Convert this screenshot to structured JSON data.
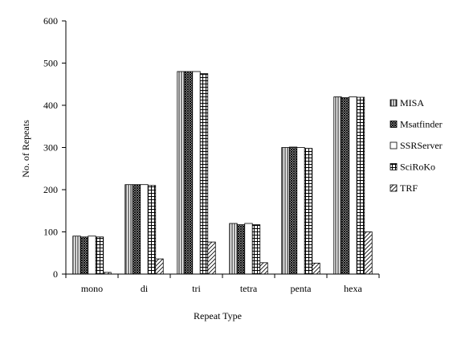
{
  "chart_data": {
    "type": "bar",
    "title": "",
    "xlabel": "Repeat Type",
    "ylabel": "No. of Repeats",
    "ylim": [
      0,
      600
    ],
    "yticks": [
      0,
      100,
      200,
      300,
      400,
      500,
      600
    ],
    "grid": false,
    "legend_position": "right",
    "categories": [
      "mono",
      "di",
      "tri",
      "tetra",
      "penta",
      "hexa"
    ],
    "series": [
      {
        "name": "MISA",
        "pattern": "vertical-lines",
        "values": [
          90,
          212,
          480,
          120,
          300,
          420
        ]
      },
      {
        "name": "Msatfinder",
        "pattern": "dense-crosshatch",
        "values": [
          88,
          212,
          480,
          117,
          301,
          418
        ]
      },
      {
        "name": "SSRServer",
        "pattern": "white",
        "values": [
          90,
          212,
          480,
          120,
          300,
          420
        ]
      },
      {
        "name": "SciRoKo",
        "pattern": "grid",
        "values": [
          88,
          210,
          475,
          117,
          298,
          419
        ]
      },
      {
        "name": "TRF",
        "pattern": "diagonal-lines",
        "values": [
          4,
          36,
          76,
          27,
          26,
          100
        ]
      }
    ]
  }
}
